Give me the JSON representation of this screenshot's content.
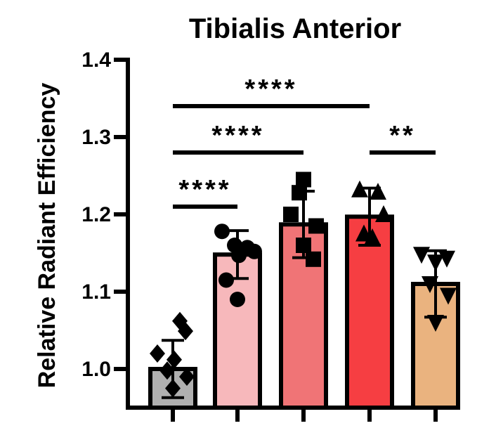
{
  "chart_data": {
    "type": "bar",
    "title": "Tibialis Anterior",
    "xlabel": "",
    "ylabel": "Relative Radiant Efficiency",
    "ylim": [
      0.95,
      1.4
    ],
    "yticks": [
      "1.0",
      "1.1",
      "1.2",
      "1.3",
      "1.4"
    ],
    "ytick_values": [
      1.0,
      1.1,
      1.2,
      1.3,
      1.4
    ],
    "grid": false,
    "legend": "none",
    "categories": [
      "",
      "",
      "",
      "",
      ""
    ],
    "series": [
      {
        "values": [
          1.0,
          1.148,
          1.187,
          1.197,
          1.11
        ],
        "error": [
          0.037,
          0.031,
          0.043,
          0.037,
          0.043
        ],
        "colors": [
          "#b0b0b0",
          "#f7b8bb",
          "#f07476",
          "#f63e42",
          "#eab37f"
        ],
        "markers": [
          "diamond",
          "circle",
          "square",
          "triangle-up",
          "triangle-down"
        ],
        "points": [
          [
            1.062,
            1.049,
            1.02,
            1.012,
            0.998,
            0.99,
            0.975
          ],
          [
            1.178,
            1.16,
            1.157,
            1.152,
            1.147,
            1.115,
            1.09
          ],
          [
            1.245,
            1.228,
            1.2,
            1.185,
            1.16,
            1.142
          ],
          [
            1.232,
            1.229,
            1.2,
            1.175,
            1.17
          ],
          [
            1.148,
            1.143,
            1.138,
            1.11,
            1.095,
            1.06
          ]
        ]
      }
    ],
    "significance": [
      {
        "from": 0,
        "to": 1,
        "y": 1.21,
        "label": "****"
      },
      {
        "from": 0,
        "to": 2,
        "y": 1.28,
        "label": "****"
      },
      {
        "from": 0,
        "to": 3,
        "y": 1.34,
        "label": "****"
      },
      {
        "from": 3,
        "to": 4,
        "y": 1.28,
        "label": "**"
      }
    ]
  }
}
